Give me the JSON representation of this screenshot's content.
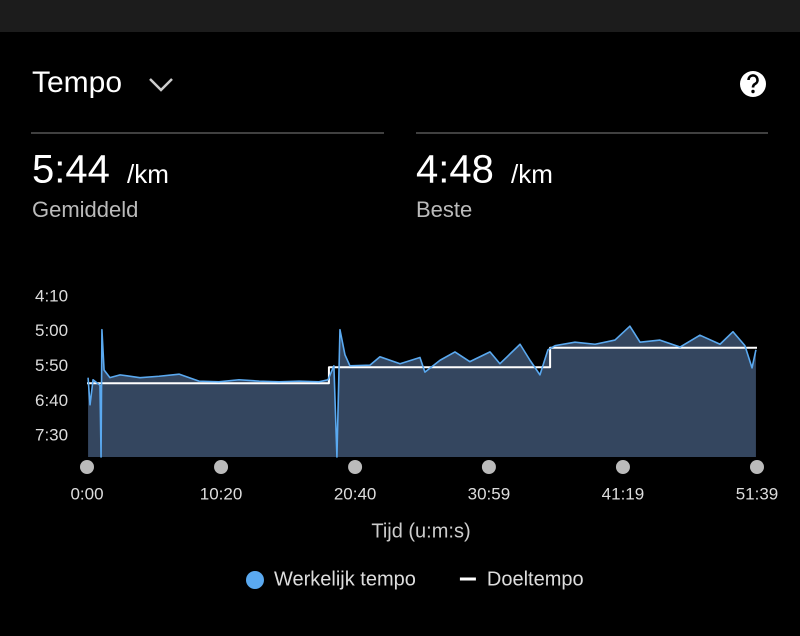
{
  "header": {
    "title": "Tempo"
  },
  "stats": [
    {
      "value": "5:44",
      "unit": "/km",
      "label": "Gemiddeld"
    },
    {
      "value": "4:48",
      "unit": "/km",
      "label": "Beste"
    }
  ],
  "chart_data": {
    "type": "line",
    "x_label": "Tijd (u:m:s)",
    "xlim": [
      0,
      3099
    ],
    "xticks": [
      {
        "value": 0,
        "label": "0:00"
      },
      {
        "value": 620,
        "label": "10:20"
      },
      {
        "value": 1240,
        "label": "20:40"
      },
      {
        "value": 1859,
        "label": "30:59"
      },
      {
        "value": 2479,
        "label": "41:19"
      },
      {
        "value": 3099,
        "label": "51:39"
      }
    ],
    "ylim": [
      480,
      230
    ],
    "yticks": [
      {
        "value": 250,
        "label": "4:10"
      },
      {
        "value": 300,
        "label": "5:00"
      },
      {
        "value": 350,
        "label": "5:50"
      },
      {
        "value": 400,
        "label": "6:40"
      },
      {
        "value": 450,
        "label": "7:30"
      }
    ],
    "area_color": "#34465f",
    "series": [
      {
        "name": "Werkelijk tempo",
        "color": "#5aa9f0",
        "marker": "dot",
        "x": [
          5,
          14,
          28,
          60,
          65,
          69,
          79,
          106,
          153,
          245,
          333,
          426,
          518,
          610,
          703,
          796,
          888,
          981,
          1073,
          1115,
          1142,
          1156,
          1170,
          1193,
          1216,
          1309,
          1355,
          1448,
          1540,
          1563,
          1633,
          1702,
          1771,
          1864,
          1910,
          2003,
          2049,
          2095,
          2132,
          2165,
          2257,
          2350,
          2442,
          2511,
          2558,
          2650,
          2743,
          2835,
          2928,
          2988,
          3043,
          3076,
          3094
        ],
        "values": [
          366,
          405,
          369,
          377,
          480,
          297,
          355,
          366,
          362,
          366,
          364,
          361,
          371,
          372,
          369,
          371,
          372,
          371,
          372,
          369,
          349,
          480,
          297,
          333,
          349,
          348,
          336,
          346,
          337,
          358,
          341,
          329,
          343,
          329,
          346,
          318,
          341,
          362,
          326,
          320,
          315,
          318,
          312,
          292,
          315,
          312,
          322,
          305,
          318,
          300,
          320,
          352,
          326
        ]
      },
      {
        "name": "Doeltempo",
        "color": "#ffffff",
        "marker": "line",
        "x": [
          0,
          1119,
          1119,
          2142,
          2142,
          3099
        ],
        "values": [
          374,
          374,
          351,
          351,
          323,
          323
        ]
      }
    ]
  }
}
